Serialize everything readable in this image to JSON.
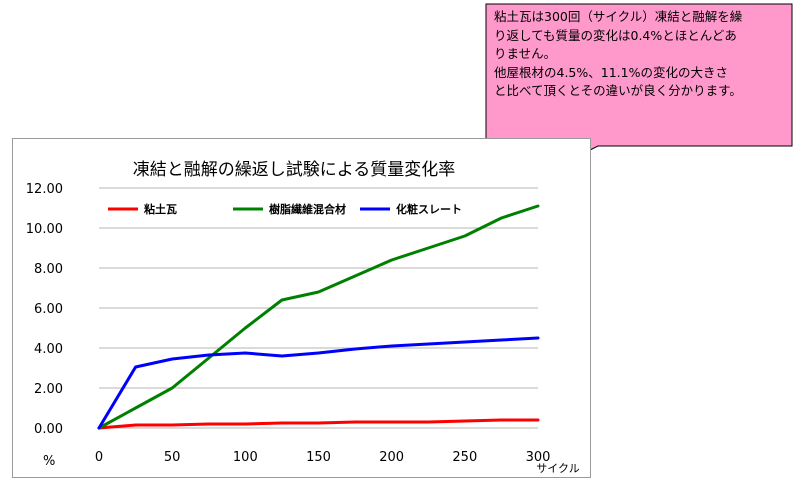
{
  "chart_data": {
    "type": "line",
    "title": "凍結と融解の繰返し試験による質量変化率",
    "y_unit": "%",
    "x_unit": "サイクル",
    "xlim": [
      0,
      300
    ],
    "ylim": [
      0,
      12
    ],
    "x_ticks": [
      "0",
      "50",
      "100",
      "150",
      "200",
      "250",
      "300"
    ],
    "y_ticks": [
      "0.00",
      "2.00",
      "4.00",
      "6.00",
      "8.00",
      "10.00",
      "12.00"
    ],
    "grid": "horizontal",
    "legend_position": "top",
    "series": [
      {
        "name": "粘土瓦",
        "color": "#ff0000",
        "x": [
          0,
          25,
          50,
          75,
          100,
          125,
          150,
          175,
          200,
          225,
          250,
          275,
          300
        ],
        "y": [
          0,
          0.15,
          0.15,
          0.2,
          0.2,
          0.25,
          0.25,
          0.3,
          0.3,
          0.3,
          0.35,
          0.4,
          0.4
        ]
      },
      {
        "name": "樹脂繊維混合材",
        "color": "#008000",
        "x": [
          0,
          25,
          50,
          75,
          100,
          125,
          150,
          175,
          200,
          225,
          250,
          275,
          300
        ],
        "y": [
          0,
          1.0,
          2.0,
          3.5,
          5.0,
          6.4,
          6.8,
          7.6,
          8.4,
          9.0,
          9.6,
          10.5,
          11.1
        ]
      },
      {
        "name": "化粧スレート",
        "color": "#0000ff",
        "x": [
          0,
          25,
          50,
          75,
          100,
          125,
          150,
          175,
          200,
          225,
          250,
          275,
          300
        ],
        "y": [
          0,
          3.05,
          3.45,
          3.65,
          3.75,
          3.6,
          3.75,
          3.95,
          4.1,
          4.2,
          4.3,
          4.4,
          4.5
        ]
      }
    ]
  },
  "callout": {
    "lines": [
      "粘土瓦は300回（サイクル）凍結と融解を繰",
      "り返しても質量の変化は0.4%とほとんどあ",
      "りません。",
      "他屋根材の4.5%、11.1%の変化の大きさ",
      "と比べて頂くとその違いが良く分かります。"
    ],
    "fill_color": "#ff99cc"
  }
}
